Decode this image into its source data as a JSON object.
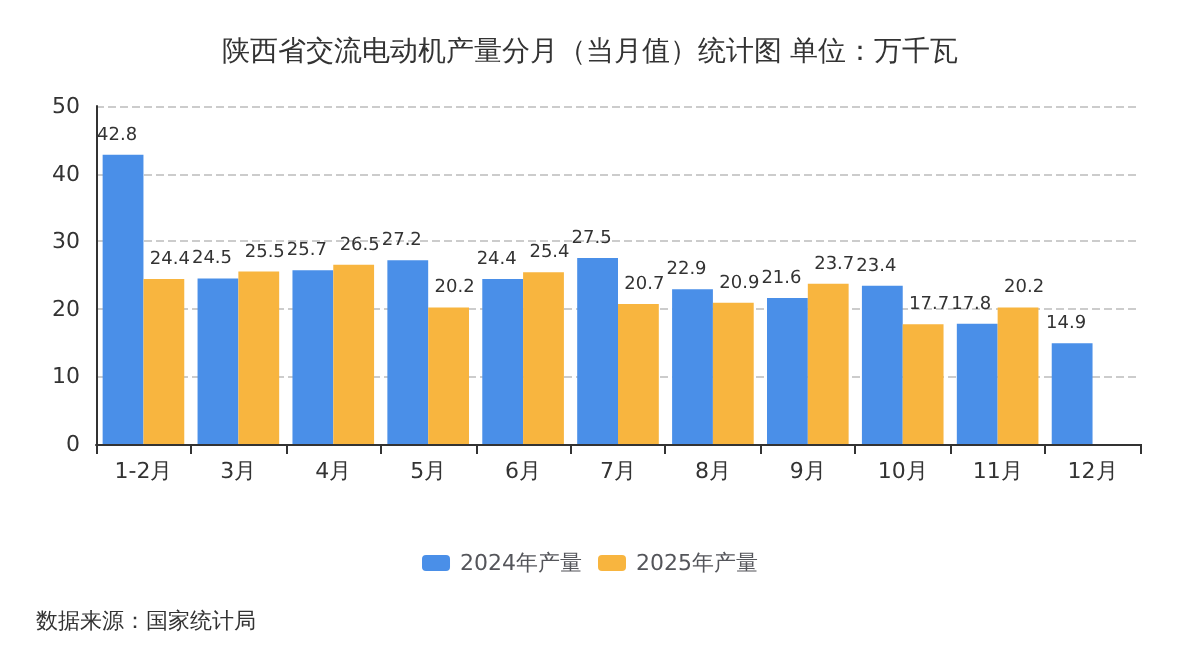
{
  "chart_data": {
    "type": "bar",
    "title": "陕西省交流电动机产量分月（当月值）统计图 单位：万千瓦",
    "categories": [
      "1-2月",
      "3月",
      "4月",
      "5月",
      "6月",
      "7月",
      "8月",
      "9月",
      "10月",
      "11月",
      "12月"
    ],
    "series": [
      {
        "name": "2024年产量",
        "color": "#4a8fe8",
        "values": [
          42.8,
          24.5,
          25.7,
          27.2,
          24.4,
          27.5,
          22.9,
          21.6,
          23.4,
          17.8,
          14.9
        ]
      },
      {
        "name": "2025年产量",
        "color": "#f8b53f",
        "values": [
          24.4,
          25.5,
          26.5,
          20.2,
          25.4,
          20.7,
          20.9,
          23.7,
          17.7,
          20.2,
          null
        ]
      }
    ],
    "ylim": [
      0,
      50
    ],
    "yticks": [
      0,
      10,
      20,
      30,
      40,
      50
    ],
    "grid": "y",
    "legend": "bottom",
    "data_labels": true,
    "annotations": [
      "数据来源：国家统计局"
    ]
  }
}
